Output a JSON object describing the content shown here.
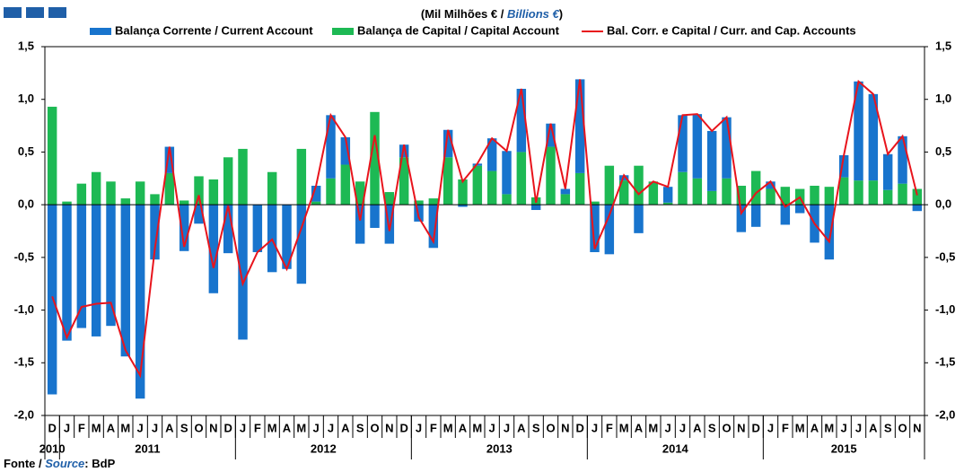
{
  "chart_data": {
    "type": "bar",
    "unit_label": [
      "(Mil Milhões € / ",
      "Billions €",
      ")"
    ],
    "source": [
      "Fonte / ",
      "Source",
      ": BdP"
    ],
    "categories": [
      "D",
      "J",
      "F",
      "M",
      "A",
      "M",
      "J",
      "J",
      "A",
      "S",
      "O",
      "N",
      "D",
      "J",
      "F",
      "M",
      "A",
      "M",
      "J",
      "J",
      "A",
      "S",
      "O",
      "N",
      "D",
      "J",
      "F",
      "M",
      "A",
      "M",
      "J",
      "J",
      "A",
      "S",
      "O",
      "N",
      "D",
      "J",
      "F",
      "M",
      "A",
      "M",
      "J",
      "J",
      "A",
      "S",
      "O",
      "N",
      "D",
      "J",
      "F",
      "M",
      "A",
      "M",
      "J",
      "J",
      "A",
      "S",
      "O",
      "N"
    ],
    "years": [
      "2010",
      "2011",
      "2012",
      "2013",
      "2014",
      "2015"
    ],
    "series": [
      {
        "name": "Balança Corrente / Current Account",
        "color": "#1874cd",
        "kind": "bar",
        "values": [
          -1.8,
          -1.29,
          -1.17,
          -1.25,
          -1.15,
          -1.44,
          -1.84,
          -0.52,
          0.25,
          -0.44,
          -0.18,
          -0.84,
          -0.46,
          -1.28,
          -0.45,
          -0.64,
          -0.61,
          -0.75,
          0.15,
          0.6,
          0.26,
          -0.37,
          -0.22,
          -0.37,
          0.12,
          -0.16,
          -0.41,
          0.26,
          -0.02,
          0.02,
          0.31,
          0.41,
          0.6,
          -0.05,
          0.22,
          0.05,
          0.89,
          -0.45,
          -0.47,
          0.05,
          -0.27,
          0.0,
          0.15,
          0.54,
          0.61,
          0.57,
          0.58,
          -0.26,
          -0.21,
          0.07,
          -0.19,
          -0.08,
          -0.36,
          -0.52,
          0.21,
          0.94,
          0.82,
          0.34,
          0.45,
          -0.06
        ]
      },
      {
        "name": "Balança de Capital / Capital Account",
        "color": "#1db954",
        "kind": "bar",
        "values": [
          0.93,
          0.03,
          0.2,
          0.31,
          0.22,
          0.06,
          0.22,
          0.1,
          0.3,
          0.04,
          0.27,
          0.24,
          0.45,
          0.53,
          0.0,
          0.31,
          0.0,
          0.53,
          0.03,
          0.25,
          0.38,
          0.22,
          0.88,
          0.12,
          0.45,
          0.04,
          0.06,
          0.45,
          0.24,
          0.37,
          0.32,
          0.1,
          0.5,
          0.07,
          0.55,
          0.1,
          0.3,
          0.03,
          0.37,
          0.23,
          0.37,
          0.22,
          0.02,
          0.31,
          0.25,
          0.13,
          0.25,
          0.18,
          0.32,
          0.15,
          0.17,
          0.15,
          0.18,
          0.17,
          0.26,
          0.23,
          0.23,
          0.14,
          0.2,
          0.15
        ]
      },
      {
        "name": "Bal. Corr. e Capital / Curr. and Cap. Accounts",
        "color": "#e8141c",
        "kind": "line",
        "values": [
          -0.87,
          -1.26,
          -0.97,
          -0.94,
          -0.93,
          -1.38,
          -1.62,
          -0.42,
          0.55,
          -0.4,
          0.09,
          -0.6,
          -0.01,
          -0.75,
          -0.45,
          -0.33,
          -0.61,
          -0.22,
          0.18,
          0.85,
          0.64,
          -0.15,
          0.66,
          -0.25,
          0.57,
          -0.12,
          -0.35,
          0.71,
          0.22,
          0.39,
          0.63,
          0.51,
          1.1,
          0.02,
          0.77,
          0.15,
          1.19,
          -0.42,
          -0.1,
          0.28,
          0.1,
          0.22,
          0.17,
          0.85,
          0.86,
          0.7,
          0.83,
          -0.08,
          0.11,
          0.22,
          -0.02,
          0.07,
          -0.18,
          -0.35,
          0.47,
          1.17,
          1.05,
          0.48,
          0.65,
          0.09
        ]
      }
    ],
    "ylim": [
      -2.0,
      1.5
    ],
    "yticks": [
      {
        "value": -2.0,
        "label": "-2,0"
      },
      {
        "value": -1.5,
        "label": "-1,5"
      },
      {
        "value": -1.0,
        "label": "-1,0"
      },
      {
        "value": -0.5,
        "label": "-0,5"
      },
      {
        "value": 0.0,
        "label": "0,0"
      },
      {
        "value": 0.5,
        "label": "0,5"
      },
      {
        "value": 1.0,
        "label": "1,0"
      },
      {
        "value": 1.5,
        "label": "1,5"
      }
    ],
    "legend": "top"
  }
}
